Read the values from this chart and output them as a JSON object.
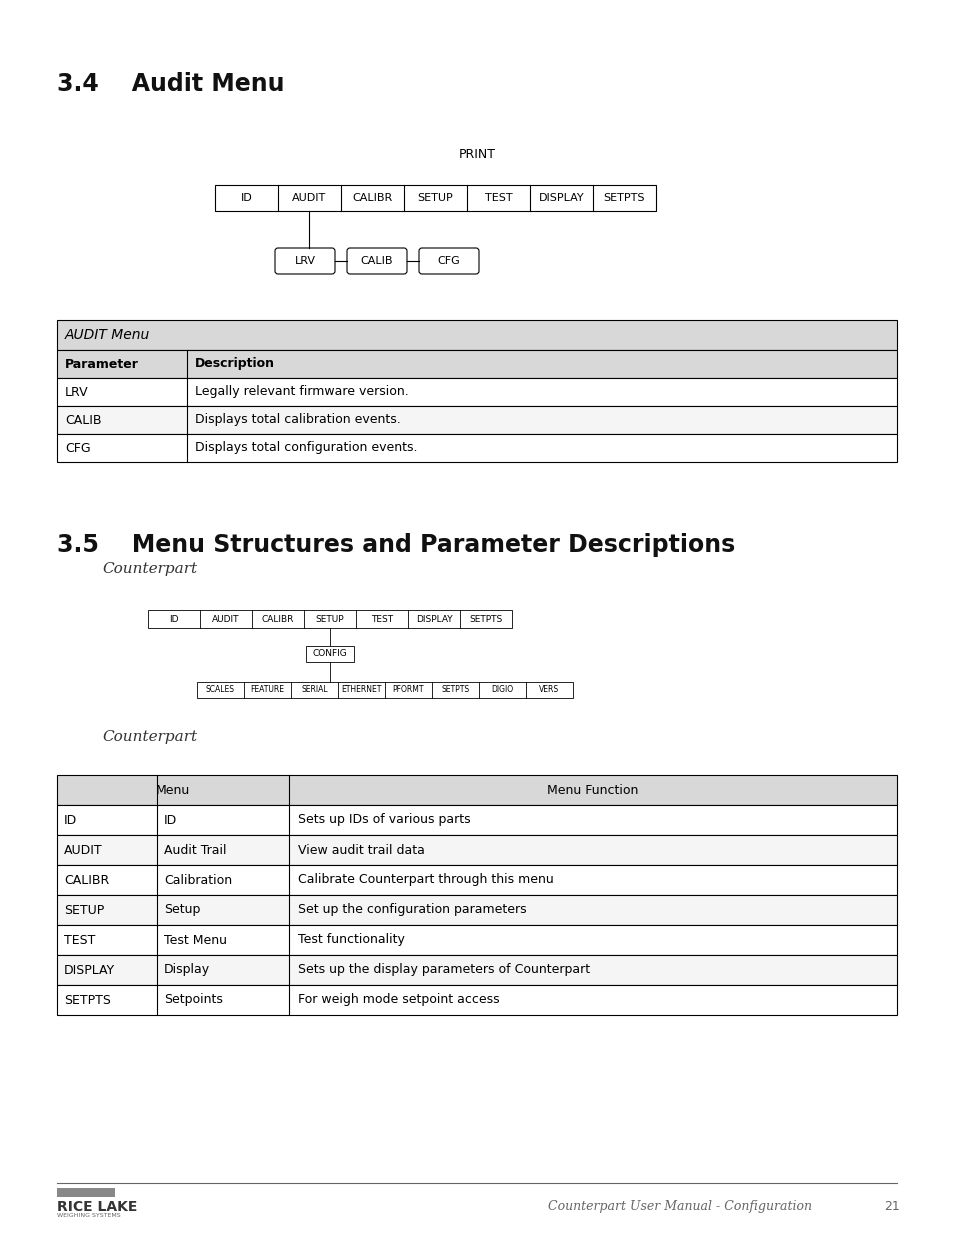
{
  "title_34": "3.4    Audit Menu",
  "title_35": "3.5    Menu Structures and Parameter Descriptions",
  "print_label": "PRINT",
  "counterpart_label1": "Counterpart",
  "counterpart_label2": "Counterpart",
  "audit_row1": [
    "ID",
    "AUDIT",
    "CALIBR",
    "SETUP",
    "TEST",
    "DISPLAY",
    "SETPTS"
  ],
  "audit_row2": [
    "LRV",
    "CALIB",
    "CFG"
  ],
  "audit_table_header": "AUDIT Menu",
  "audit_col_headers": [
    "Parameter",
    "Description"
  ],
  "audit_rows": [
    [
      "LRV",
      "Legally relevant firmware version."
    ],
    [
      "CALIB",
      "Displays total calibration events."
    ],
    [
      "CFG",
      "Displays total configuration events."
    ]
  ],
  "setup_row1": [
    "ID",
    "AUDIT",
    "CALIBR",
    "SETUP",
    "TEST",
    "DISPLAY",
    "SETPTS"
  ],
  "setup_row2": [
    "SCALES",
    "FEATURE",
    "SERIAL",
    "ETHERNET",
    "PFORMT",
    "SETPTS",
    "DIGIO",
    "VERS"
  ],
  "menu_col_headers": [
    "Menu",
    "Menu Function"
  ],
  "menu_rows": [
    [
      "ID",
      "ID",
      "Sets up IDs of various parts"
    ],
    [
      "AUDIT",
      "Audit Trail",
      "View audit trail data"
    ],
    [
      "CALIBR",
      "Calibration",
      "Calibrate Counterpart through this menu"
    ],
    [
      "SETUP",
      "Setup",
      "Set up the configuration parameters"
    ],
    [
      "TEST",
      "Test Menu",
      "Test functionality"
    ],
    [
      "DISPLAY",
      "Display",
      "Sets up the display parameters of Counterpart"
    ],
    [
      "SETPTS",
      "Setpoints",
      "For weigh mode setpoint access"
    ]
  ],
  "footer_text": "Counterpart User Manual - Configuration",
  "page_number": "21",
  "bg_color": "#ffffff",
  "table_gray_header": "#d8d8d8",
  "table_white": "#ffffff"
}
